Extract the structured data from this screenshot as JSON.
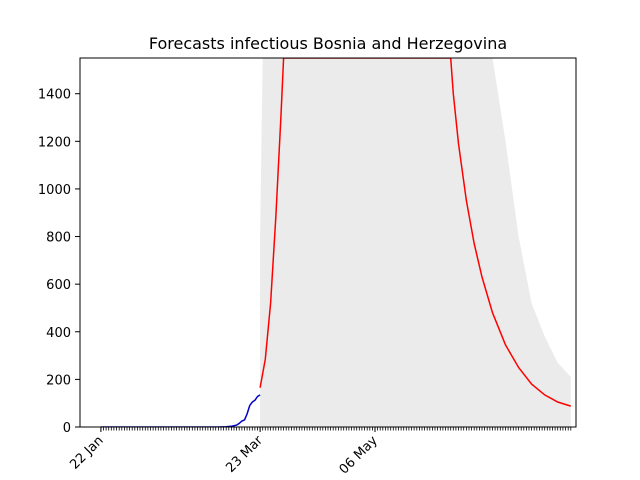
{
  "chart_data": {
    "type": "line",
    "title": "Forecasts infectious Bosnia and Herzegovina",
    "xlabel": "",
    "ylabel": "",
    "ylim": [
      0,
      1550
    ],
    "xlim_days": [
      -8,
      182
    ],
    "x_tick_labels": [
      {
        "day": 0,
        "label": "22 Jan"
      },
      {
        "day": 61,
        "label": "23 Mar"
      },
      {
        "day": 105,
        "label": "06 May"
      }
    ],
    "y_ticks": [
      0,
      200,
      400,
      600,
      800,
      1000,
      1200,
      1400
    ],
    "grid": false,
    "colors": {
      "observed": "#0000cc",
      "forecast": "#ff0000",
      "band": "#ebebeb"
    },
    "observed": {
      "x": [
        0,
        45,
        48,
        50,
        52,
        53,
        54,
        55,
        56,
        57,
        58,
        59,
        60,
        61
      ],
      "y": [
        0,
        0,
        1,
        3,
        8,
        15,
        25,
        30,
        55,
        90,
        105,
        112,
        128,
        135
      ]
    },
    "forecast": {
      "x": [
        61,
        63,
        65,
        67,
        69,
        70,
        71,
        72,
        134,
        135,
        137,
        140,
        143,
        146,
        150,
        155,
        160,
        165,
        170,
        175,
        180
      ],
      "y": [
        165,
        285,
        520,
        880,
        1310,
        1550,
        1550,
        1550,
        1550,
        1400,
        1190,
        950,
        770,
        630,
        480,
        345,
        250,
        180,
        135,
        105,
        88
      ]
    },
    "band": {
      "x": [
        61,
        62,
        63,
        64,
        65,
        66,
        67,
        68,
        150,
        155,
        160,
        165,
        170,
        175,
        180
      ],
      "upper": [
        800,
        1550,
        1550,
        1550,
        1550,
        1550,
        1550,
        1550,
        1550,
        1200,
        800,
        520,
        380,
        270,
        210
      ],
      "lower": [
        0,
        0,
        0,
        0,
        0,
        0,
        0,
        0,
        0,
        0,
        0,
        0,
        0,
        0,
        0
      ]
    }
  }
}
